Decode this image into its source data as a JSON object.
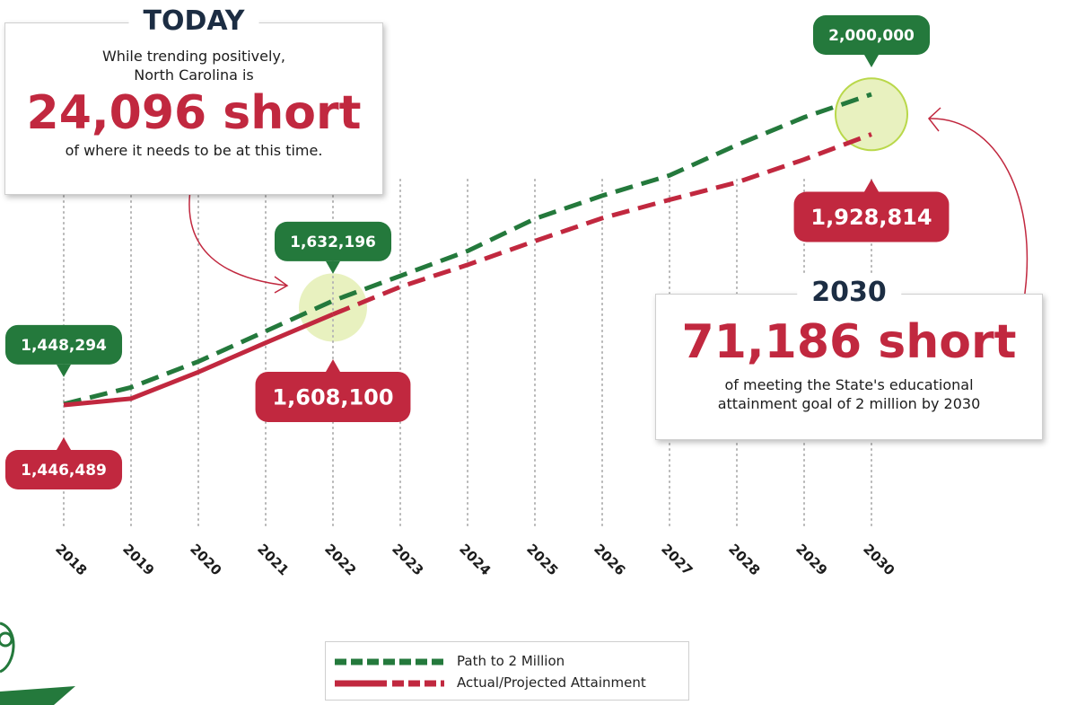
{
  "chart_data": {
    "type": "line",
    "x": [
      2018,
      2019,
      2020,
      2021,
      2022,
      2023,
      2024,
      2025,
      2026,
      2027,
      2028,
      2029,
      2030
    ],
    "series": [
      {
        "name": "Path to 2 Million",
        "color": "#24793c",
        "style": "dashed",
        "values": [
          1448294,
          1478000,
          1524000,
          1578000,
          1632196,
          1676500,
          1720900,
          1778300,
          1819400,
          1855500,
          1909700,
          1959000,
          2000000
        ],
        "value_labels": [
          "1,448,294",
          null,
          null,
          null,
          "1,632,196",
          null,
          null,
          null,
          null,
          null,
          null,
          null,
          "2,000,000"
        ]
      },
      {
        "name": "Actual/Projected Attainment",
        "color": "#c1283f",
        "style": "solid-then-dashed",
        "actual_through": 2022,
        "values": [
          1446489,
          1457900,
          1505200,
          1557400,
          1608100,
          1657000,
          1696200,
          1738600,
          1779400,
          1812100,
          1843100,
          1883900,
          1928814
        ],
        "value_labels": [
          "1,446,489",
          null,
          null,
          null,
          "1,608,100",
          null,
          null,
          null,
          null,
          null,
          null,
          null,
          "1,928,814"
        ]
      }
    ],
    "annotations": {
      "today": {
        "heading": "TODAY",
        "intro": "While trending positively, North Carolina is",
        "highlight": "24,096 short",
        "note": "of where it needs to be at this time."
      },
      "goal": {
        "heading": "2030",
        "highlight": "71,186 short",
        "note": "of meeting the State's educational attainment goal of 2 million by 2030"
      }
    }
  }
}
